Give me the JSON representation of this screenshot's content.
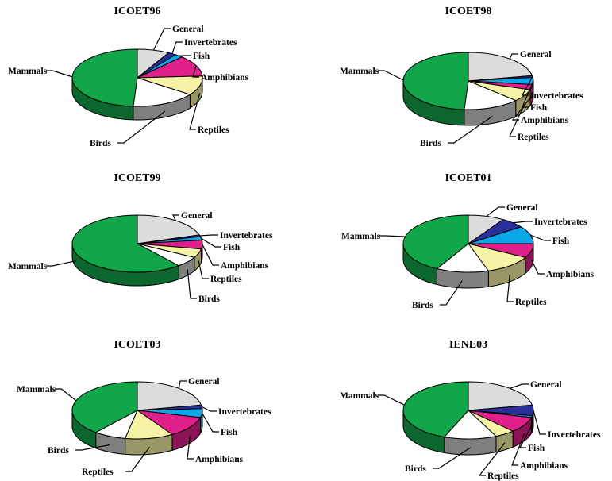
{
  "colors": {
    "General": "#dcdcdc",
    "Invertebrates": "#2b2f9c",
    "Fish": "#0aa8e8",
    "Amphibians": "#e0208a",
    "Reptiles": "#f6f3a6",
    "Birds": "#ffffff",
    "Mammals": "#12a64a",
    "outline": "#000000"
  },
  "chart_data": [
    {
      "type": "pie",
      "title": "ICOET96",
      "slices": [
        {
          "label": "General",
          "value": 8
        },
        {
          "label": "Invertebrates",
          "value": 2
        },
        {
          "label": "Fish",
          "value": 2
        },
        {
          "label": "Amphibians",
          "value": 12
        },
        {
          "label": "Reptiles",
          "value": 11
        },
        {
          "label": "Birds",
          "value": 16
        },
        {
          "label": "Mammals",
          "value": 49
        }
      ]
    },
    {
      "type": "pie",
      "title": "ICOET98",
      "slices": [
        {
          "label": "General",
          "value": 22
        },
        {
          "label": "Invertebrates",
          "value": 1
        },
        {
          "label": "Fish",
          "value": 4
        },
        {
          "label": "Amphibians",
          "value": 3
        },
        {
          "label": "Reptiles",
          "value": 7
        },
        {
          "label": "Birds",
          "value": 14
        },
        {
          "label": "Mammals",
          "value": 49
        }
      ]
    },
    {
      "type": "pie",
      "title": "ICOET99",
      "slices": [
        {
          "label": "General",
          "value": 20
        },
        {
          "label": "Invertebrates",
          "value": 1
        },
        {
          "label": "Fish",
          "value": 2
        },
        {
          "label": "Amphibians",
          "value": 5
        },
        {
          "label": "Reptiles",
          "value": 5
        },
        {
          "label": "Birds",
          "value": 6
        },
        {
          "label": "Mammals",
          "value": 61
        }
      ]
    },
    {
      "type": "pie",
      "title": "ICOET01",
      "slices": [
        {
          "label": "General",
          "value": 9
        },
        {
          "label": "Invertebrates",
          "value": 6
        },
        {
          "label": "Fish",
          "value": 10
        },
        {
          "label": "Amphibians",
          "value": 8
        },
        {
          "label": "Reptiles",
          "value": 12
        },
        {
          "label": "Birds",
          "value": 13
        },
        {
          "label": "Mammals",
          "value": 42
        }
      ]
    },
    {
      "type": "pie",
      "title": "ICOET03",
      "slices": [
        {
          "label": "General",
          "value": 22
        },
        {
          "label": "Invertebrates",
          "value": 2
        },
        {
          "label": "Fish",
          "value": 5
        },
        {
          "label": "Amphibians",
          "value": 12
        },
        {
          "label": "Reptiles",
          "value": 12
        },
        {
          "label": "Birds",
          "value": 8
        },
        {
          "label": "Mammals",
          "value": 39
        }
      ]
    },
    {
      "type": "pie",
      "title": "IENE03",
      "slices": [
        {
          "label": "General",
          "value": 22
        },
        {
          "label": "Invertebrates",
          "value": 6
        },
        {
          "label": "Fish",
          "value": 1
        },
        {
          "label": "Amphibians",
          "value": 9
        },
        {
          "label": "Reptiles",
          "value": 5
        },
        {
          "label": "Birds",
          "value": 13
        },
        {
          "label": "Mammals",
          "value": 44
        }
      ]
    }
  ]
}
